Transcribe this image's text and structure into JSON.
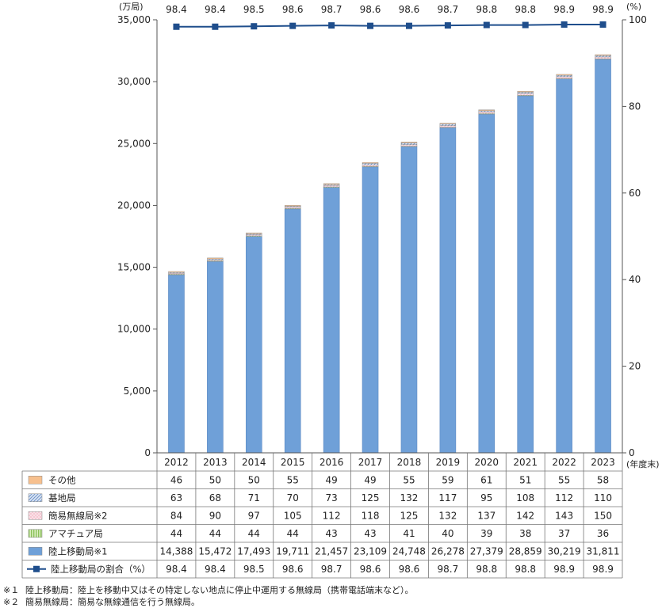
{
  "chart_data": {
    "type": "bar",
    "categories": [
      "2012",
      "2013",
      "2014",
      "2015",
      "2016",
      "2017",
      "2018",
      "2019",
      "2020",
      "2021",
      "2022",
      "2023"
    ],
    "y_left_unit": "(万局)",
    "y_right_unit": "(%)",
    "x_unit": "(年度末)",
    "ylim": [
      0,
      35000
    ],
    "y_ticks": [
      0,
      5000,
      10000,
      15000,
      20000,
      25000,
      30000,
      35000
    ],
    "y_tick_labels": [
      "0",
      "5,000",
      "10,000",
      "15,000",
      "20,000",
      "25,000",
      "30,000",
      "35,000"
    ],
    "y2lim": [
      0,
      100
    ],
    "y2_ticks": [
      0,
      20,
      40,
      60,
      80,
      100
    ],
    "y2_tick_labels": [
      "0",
      "20",
      "40",
      "60",
      "80",
      "100"
    ],
    "stacked": true,
    "series": [
      {
        "name": "陸上移動局※1",
        "kind": "bar",
        "color": "#6fa0d8",
        "values": [
          14388,
          15472,
          17493,
          19711,
          21457,
          23109,
          24748,
          26278,
          27379,
          28859,
          30219,
          31811
        ],
        "labels": [
          "14,388",
          "15,472",
          "17,493",
          "19,711",
          "21,457",
          "23,109",
          "24,748",
          "26,278",
          "27,379",
          "28,859",
          "30,219",
          "31,811"
        ]
      },
      {
        "name": "アマチュア局",
        "kind": "bar",
        "color": "#b7dc8a",
        "values": [
          44,
          44,
          44,
          44,
          43,
          43,
          41,
          40,
          39,
          38,
          37,
          36
        ],
        "labels": [
          "44",
          "44",
          "44",
          "44",
          "43",
          "43",
          "41",
          "40",
          "39",
          "38",
          "37",
          "36"
        ]
      },
      {
        "name": "簡易無線局※2",
        "kind": "bar",
        "color": "#f6c8d3",
        "values": [
          84,
          90,
          97,
          105,
          112,
          118,
          125,
          132,
          137,
          142,
          143,
          150
        ],
        "labels": [
          "84",
          "90",
          "97",
          "105",
          "112",
          "118",
          "125",
          "132",
          "137",
          "142",
          "143",
          "150"
        ]
      },
      {
        "name": "基地局",
        "kind": "bar",
        "color": "#b9cdea",
        "values": [
          63,
          68,
          71,
          70,
          73,
          125,
          132,
          117,
          95,
          108,
          112,
          110
        ],
        "labels": [
          "63",
          "68",
          "71",
          "70",
          "73",
          "125",
          "132",
          "117",
          "95",
          "108",
          "112",
          "110"
        ]
      },
      {
        "name": "その他",
        "kind": "bar",
        "color": "#f7c08e",
        "values": [
          46,
          50,
          50,
          55,
          49,
          49,
          55,
          59,
          61,
          51,
          55,
          58
        ],
        "labels": [
          "46",
          "50",
          "50",
          "55",
          "49",
          "49",
          "55",
          "59",
          "61",
          "51",
          "55",
          "58"
        ]
      },
      {
        "name": "陸上移動局の割合（%）",
        "kind": "line",
        "axis": "right",
        "color": "#1f4e8c",
        "values": [
          98.4,
          98.4,
          98.5,
          98.6,
          98.7,
          98.6,
          98.6,
          98.7,
          98.8,
          98.8,
          98.9,
          98.9
        ],
        "labels": [
          "98.4",
          "98.4",
          "98.5",
          "98.6",
          "98.7",
          "98.6",
          "98.6",
          "98.7",
          "98.8",
          "98.8",
          "98.9",
          "98.9"
        ]
      }
    ],
    "table_row_order": [
      "その他",
      "基地局",
      "簡易無線局※2",
      "アマチュア局",
      "陸上移動局※1",
      "陸上移動局の割合（%）"
    ]
  },
  "footnotes": [
    {
      "mark": "※１",
      "text": "陸上移動局：陸上を移動中又はその特定しない地点に停止中運用する無線局（携帯電話端末など）。"
    },
    {
      "mark": "※２",
      "text": "簡易無線局：簡易な無線通信を行う無線局。"
    }
  ]
}
